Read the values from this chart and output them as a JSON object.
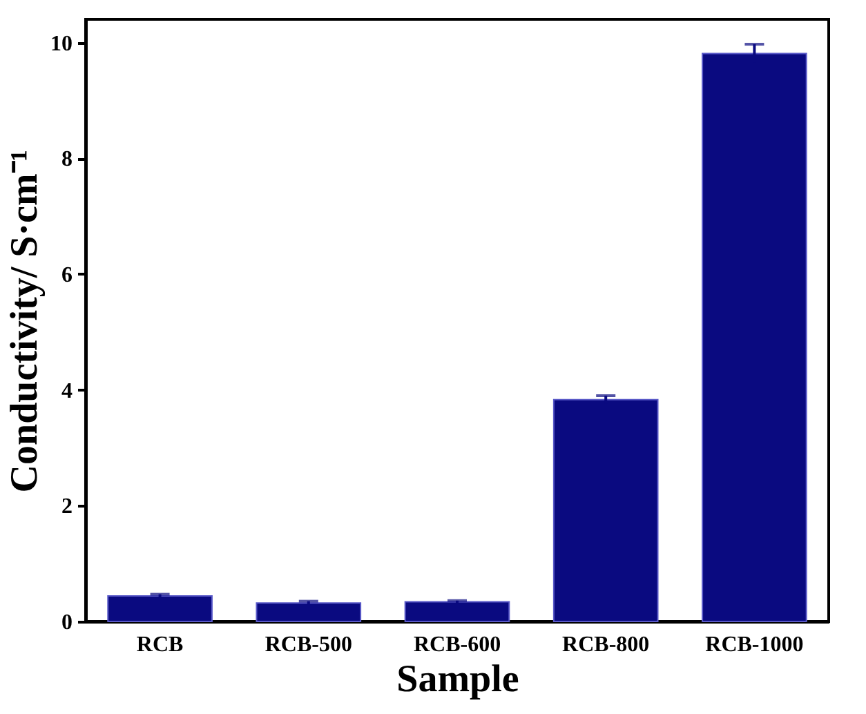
{
  "chart_data": {
    "type": "bar",
    "xlabel": "Sample",
    "ylabel": "Conductivity/ S·cm⁻¹",
    "categories": [
      "RCB",
      "RCB-500",
      "RCB-600",
      "RCB-800",
      "RCB-1000"
    ],
    "values": [
      0.44,
      0.32,
      0.34,
      3.83,
      9.81
    ],
    "errors": [
      0.03,
      0.03,
      0.02,
      0.07,
      0.16
    ],
    "color": "#0a0a80",
    "ylim": [
      0,
      10.4
    ],
    "yticks": [
      0,
      2,
      4,
      6,
      8,
      10
    ],
    "grid": false
  }
}
